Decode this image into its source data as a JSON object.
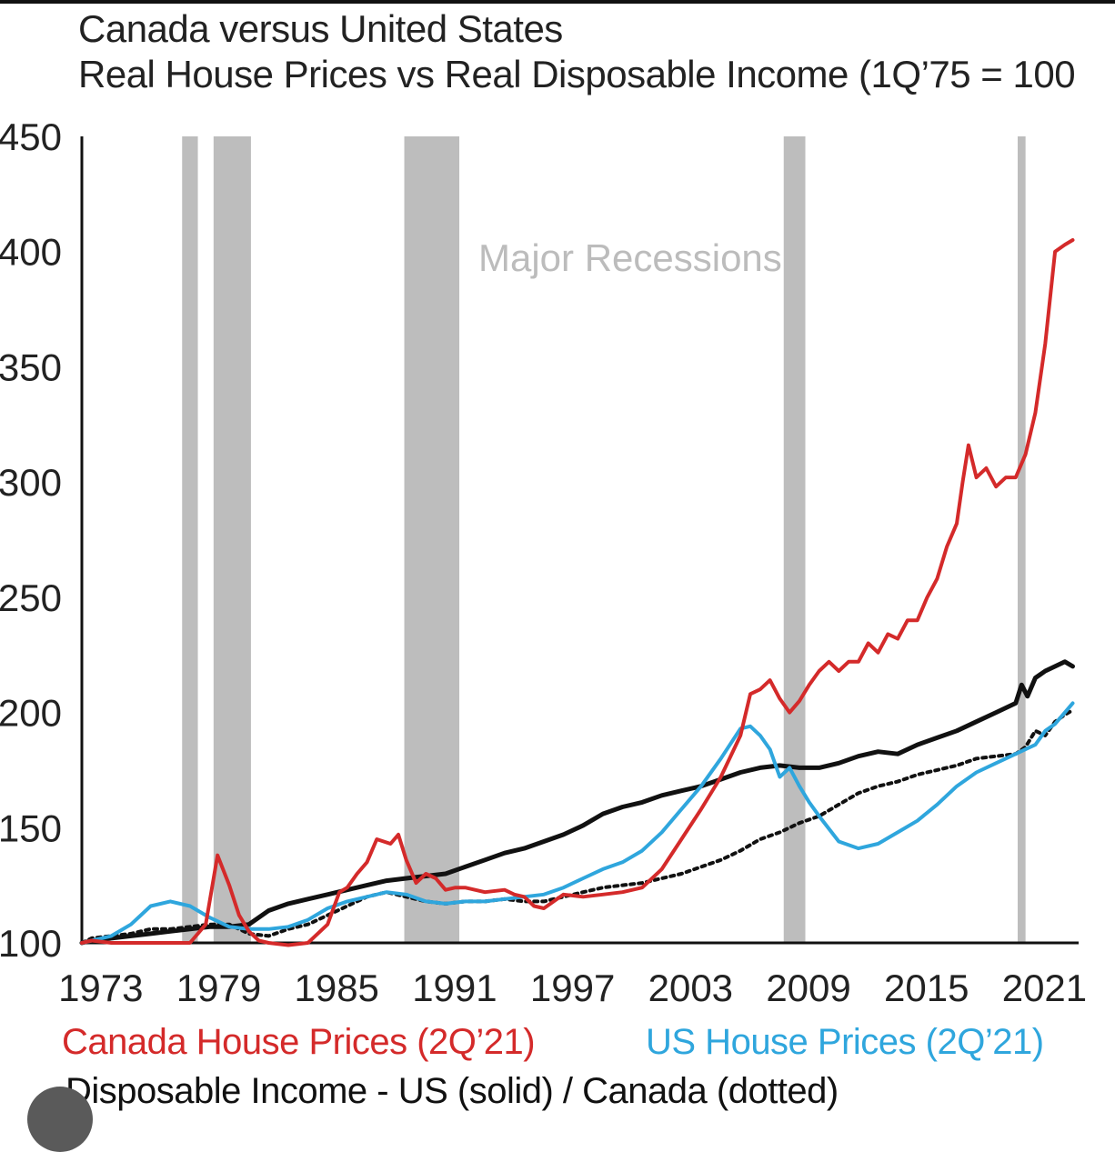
{
  "header": {
    "title_line1": "Canada versus United States",
    "title_line2": "Real House Prices vs Real Disposable Income (1Q’75 = 100"
  },
  "chart_data": {
    "type": "line",
    "title": "Canada versus United States",
    "subtitle": "Real House Prices vs Real Disposable Income (1Q’75 = 100",
    "xlabel": "",
    "ylabel": "",
    "xlim": [
      1972.5,
      2023.2
    ],
    "ylim": [
      100,
      450
    ],
    "x_ticks": [
      "1973",
      "1979",
      "1985",
      "1991",
      "1997",
      "2003",
      "2009",
      "2015",
      "2021"
    ],
    "x_tick_values": [
      1973,
      1979,
      1985,
      1991,
      1997,
      2003,
      2009,
      2015,
      2021
    ],
    "y_ticks": [
      "100",
      "150",
      "200",
      "250",
      "300",
      "350",
      "400",
      "450"
    ],
    "y_tick_values": [
      100,
      150,
      200,
      250,
      300,
      350,
      400,
      450
    ],
    "annotation": "Major Recessions",
    "recessions": [
      [
        1977.6,
        1978.4
      ],
      [
        1979.2,
        1981.1
      ],
      [
        1988.9,
        1991.7
      ],
      [
        2008.2,
        2009.3
      ],
      [
        2020.1,
        2020.5
      ]
    ],
    "colors": {
      "canada": "#d42a2a",
      "us": "#2fa6dd",
      "us_income": "#111111",
      "canada_income": "#111111",
      "recession": "#bdbdbd"
    },
    "series": [
      {
        "name": "Canada House Prices (2Q’21)",
        "style": "solid",
        "x": [
          1972.5,
          1973,
          1974,
          1975,
          1976,
          1977,
          1978,
          1978.8,
          1979.4,
          1980,
          1980.5,
          1981,
          1981.5,
          1982,
          1983,
          1984,
          1985,
          1985.6,
          1986,
          1986.5,
          1987,
          1987.5,
          1988.2,
          1988.6,
          1989,
          1989.5,
          1990,
          1990.5,
          1991,
          1991.5,
          1992,
          1993,
          1994,
          1994.5,
          1995,
          1995.5,
          1996,
          1997,
          1998,
          1999,
          2000,
          2001,
          2002,
          2003,
          2004,
          2005,
          2006,
          2006.5,
          2007,
          2007.5,
          2008,
          2008.5,
          2009,
          2009.5,
          2010,
          2010.5,
          2011,
          2011.5,
          2012,
          2012.5,
          2013,
          2013.5,
          2014,
          2014.5,
          2015,
          2015.5,
          2016,
          2016.5,
          2017,
          2017.3,
          2017.6,
          2018,
          2018.5,
          2019,
          2019.5,
          2020,
          2020.5,
          2021,
          2021.5,
          2022,
          2022.5,
          2022.9
        ],
        "values": [
          100,
          101,
          100,
          100,
          100,
          100,
          100,
          108,
          138,
          125,
          112,
          105,
          101,
          100,
          99,
          100,
          108,
          122,
          124,
          130,
          135,
          145,
          143,
          147,
          136,
          126,
          130,
          128,
          123,
          124,
          124,
          122,
          123,
          121,
          120,
          116,
          115,
          121,
          120,
          121,
          122,
          124,
          132,
          145,
          158,
          172,
          190,
          208,
          210,
          214,
          206,
          200,
          205,
          212,
          218,
          222,
          218,
          222,
          222,
          230,
          226,
          234,
          232,
          240,
          240,
          250,
          258,
          272,
          282,
          300,
          316,
          302,
          306,
          298,
          302,
          302,
          312,
          330,
          360,
          400,
          403,
          405
        ]
      },
      {
        "name": "US House Prices (2Q’21)",
        "style": "solid",
        "x": [
          1972.5,
          1973,
          1974,
          1975,
          1976,
          1977,
          1978,
          1979,
          1980,
          1981,
          1982,
          1983,
          1984,
          1985,
          1986,
          1987,
          1988,
          1989,
          1990,
          1991,
          1992,
          1993,
          1994,
          1995,
          1996,
          1997,
          1998,
          1999,
          2000,
          2001,
          2002,
          2003,
          2004,
          2005,
          2006,
          2006.5,
          2007,
          2007.5,
          2008,
          2008.5,
          2009,
          2009.5,
          2010,
          2011,
          2012,
          2013,
          2014,
          2015,
          2016,
          2017,
          2018,
          2019,
          2020,
          2020.5,
          2021,
          2021.5,
          2022,
          2022.5,
          2022.9
        ],
        "values": [
          100,
          101,
          103,
          108,
          116,
          118,
          116,
          111,
          107,
          106,
          106,
          107,
          110,
          115,
          118,
          120,
          122,
          121,
          118,
          117,
          118,
          118,
          119,
          120,
          121,
          124,
          128,
          132,
          135,
          140,
          148,
          158,
          168,
          180,
          193,
          194,
          190,
          184,
          172,
          176,
          168,
          161,
          155,
          144,
          141,
          143,
          148,
          153,
          160,
          168,
          174,
          178,
          182,
          184,
          186,
          192,
          195,
          200,
          204
        ]
      },
      {
        "name": "Disposable Income - US (solid)",
        "style": "solid",
        "x": [
          1972.5,
          1973,
          1974,
          1975,
          1976,
          1977,
          1978,
          1979,
          1980,
          1981,
          1982,
          1983,
          1984,
          1985,
          1986,
          1987,
          1988,
          1989,
          1990,
          1991,
          1992,
          1993,
          1994,
          1995,
          1996,
          1997,
          1998,
          1999,
          2000,
          2001,
          2002,
          2003,
          2004,
          2005,
          2006,
          2007,
          2008,
          2009,
          2010,
          2011,
          2012,
          2013,
          2014,
          2015,
          2016,
          2017,
          2018,
          2019,
          2020,
          2020.3,
          2020.6,
          2021,
          2021.5,
          2022,
          2022.5,
          2022.9
        ],
        "values": [
          100,
          101,
          102,
          103,
          104,
          105,
          106,
          107,
          107,
          108,
          114,
          117,
          119,
          121,
          123,
          125,
          127,
          128,
          129,
          130,
          133,
          136,
          139,
          141,
          144,
          147,
          151,
          156,
          159,
          161,
          164,
          166,
          168,
          171,
          174,
          176,
          177,
          176,
          176,
          178,
          181,
          183,
          182,
          186,
          189,
          192,
          196,
          200,
          204,
          212,
          207,
          215,
          218,
          220,
          222,
          220
        ]
      },
      {
        "name": "Disposable Income - Canada (dotted)",
        "style": "dotted",
        "x": [
          1972.5,
          1973,
          1974,
          1975,
          1976,
          1977,
          1978,
          1979,
          1980,
          1981,
          1982,
          1983,
          1984,
          1985,
          1986,
          1987,
          1988,
          1989,
          1990,
          1991,
          1992,
          1993,
          1994,
          1995,
          1996,
          1997,
          1998,
          1999,
          2000,
          2001,
          2002,
          2003,
          2004,
          2005,
          2006,
          2007,
          2008,
          2009,
          2010,
          2011,
          2012,
          2013,
          2014,
          2015,
          2016,
          2017,
          2018,
          2019,
          2020,
          2020.5,
          2021,
          2021.5,
          2022,
          2022.5,
          2022.9
        ],
        "values": [
          100,
          102,
          103,
          104,
          106,
          106,
          107,
          108,
          108,
          104,
          103,
          106,
          108,
          112,
          116,
          120,
          122,
          120,
          118,
          117,
          118,
          118,
          119,
          118,
          118,
          120,
          122,
          124,
          125,
          126,
          128,
          130,
          133,
          136,
          140,
          145,
          148,
          152,
          155,
          160,
          165,
          168,
          170,
          173,
          175,
          177,
          180,
          181,
          182,
          185,
          192,
          190,
          196,
          199,
          201
        ]
      }
    ]
  },
  "legend": {
    "canada": "Canada House Prices (2Q’21)",
    "us": "US House Prices (2Q’21)",
    "income": "Disposable Income - US (solid) / Canada (dotted)"
  }
}
